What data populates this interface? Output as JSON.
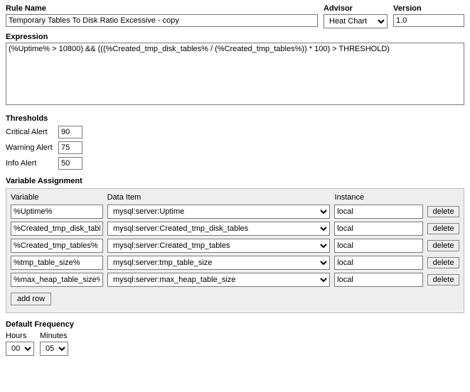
{
  "rule": {
    "name_label": "Rule Name",
    "name_value": "Temporary Tables To Disk Ratio Excessive - copy",
    "advisor_label": "Advisor",
    "advisor_value": "Heat Chart",
    "version_label": "Version",
    "version_value": "1.0"
  },
  "expression": {
    "label": "Expression",
    "value": "(%Uptime% > 10800) && (((%Created_tmp_disk_tables% / (%Created_tmp_tables%)) * 100) > THRESHOLD)"
  },
  "thresholds": {
    "title": "Thresholds",
    "critical_label": "Critical Alert",
    "critical_value": "90",
    "warning_label": "Warning Alert",
    "warning_value": "75",
    "info_label": "Info Alert",
    "info_value": "50"
  },
  "variable_assignment": {
    "title": "Variable Assignment",
    "header_variable": "Variable",
    "header_data_item": "Data Item",
    "header_instance": "Instance",
    "delete_label": "delete",
    "add_row_label": "add row",
    "rows": [
      {
        "variable": "%Uptime%",
        "data_item": "mysql:server:Uptime",
        "instance": "local"
      },
      {
        "variable": "%Created_tmp_disk_tables%",
        "data_item": "mysql:server:Created_tmp_disk_tables",
        "instance": "local"
      },
      {
        "variable": "%Created_tmp_tables%",
        "data_item": "mysql:server:Created_tmp_tables",
        "instance": "local"
      },
      {
        "variable": "%tmp_table_size%",
        "data_item": "mysql:server:tmp_table_size",
        "instance": "local"
      },
      {
        "variable": "%max_heap_table_size%",
        "data_item": "mysql:server:max_heap_table_size",
        "instance": "local"
      }
    ]
  },
  "default_frequency": {
    "title": "Default Frequency",
    "hours_label": "Hours",
    "hours_value": "00",
    "minutes_label": "Minutes",
    "minutes_value": "05"
  }
}
